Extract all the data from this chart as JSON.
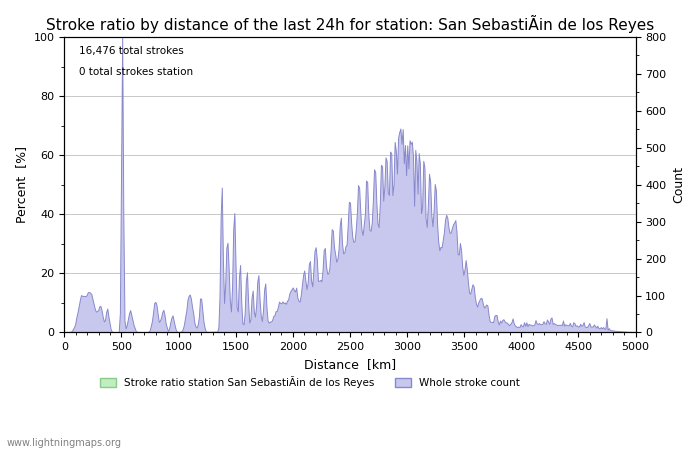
{
  "title": "Stroke ratio by distance of the last 24h for station: San SebastiÃin de los Reyes",
  "xlabel": "Distance  [km]",
  "ylabel_left": "Percent  [%]",
  "ylabel_right": "Count",
  "xlim": [
    0,
    5000
  ],
  "ylim_left": [
    0,
    100
  ],
  "ylim_right": [
    0,
    800
  ],
  "annotation_line1": "16,476 total strokes",
  "annotation_line2": "0 total strokes station",
  "watermark": "www.lightningmaps.org",
  "legend_station": "Stroke ratio station San SebastiÃin de los Reyes",
  "legend_whole": "Whole stroke count",
  "bg_color": "#ffffff",
  "grid_color": "#c8c8c8",
  "fill_color": "#c8c8ee",
  "line_color": "#8888cc",
  "green_fill": "#c0eec0",
  "green_edge": "#88cc88",
  "title_fontsize": 11,
  "axis_fontsize": 9,
  "tick_fontsize": 8
}
